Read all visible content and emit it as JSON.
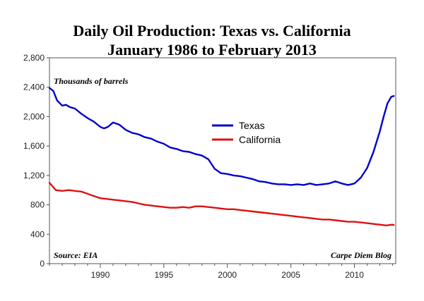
{
  "chart_data": {
    "type": "line",
    "title": "Daily Oil Production: Texas vs. California",
    "subtitle": "January 1986 to February 2013",
    "ylabel": "Thousands of barrels",
    "xlabel": "",
    "xlim": [
      1986,
      2013.25
    ],
    "ylim": [
      0,
      2800
    ],
    "x_ticks": [
      1990,
      1995,
      2000,
      2005,
      2010
    ],
    "y_ticks": [
      0,
      400,
      800,
      1200,
      1600,
      2000,
      2400,
      2800
    ],
    "grid": false,
    "legend_position": "center",
    "source": "Source: EIA",
    "credit": "Carpe Diem Blog",
    "series": [
      {
        "name": "Texas",
        "color": "#0000cc",
        "x": [
          1986.0,
          1986.3,
          1986.6,
          1987.0,
          1987.3,
          1987.6,
          1988.0,
          1988.5,
          1989.0,
          1989.5,
          1990.0,
          1990.3,
          1990.6,
          1991.0,
          1991.5,
          1992.0,
          1992.5,
          1993.0,
          1993.5,
          1994.0,
          1994.5,
          1995.0,
          1995.5,
          1996.0,
          1996.5,
          1997.0,
          1997.5,
          1998.0,
          1998.5,
          1999.0,
          1999.5,
          2000.0,
          2000.5,
          2001.0,
          2001.5,
          2002.0,
          2002.5,
          2003.0,
          2003.5,
          2004.0,
          2004.5,
          2005.0,
          2005.5,
          2006.0,
          2006.5,
          2007.0,
          2007.5,
          2008.0,
          2008.5,
          2009.0,
          2009.5,
          2010.0,
          2010.5,
          2011.0,
          2011.5,
          2012.0,
          2012.3,
          2012.6,
          2012.9,
          2013.1
        ],
        "values": [
          2390,
          2350,
          2220,
          2150,
          2160,
          2130,
          2110,
          2040,
          1980,
          1930,
          1860,
          1840,
          1860,
          1920,
          1890,
          1820,
          1780,
          1760,
          1720,
          1700,
          1660,
          1630,
          1580,
          1560,
          1530,
          1520,
          1490,
          1470,
          1420,
          1290,
          1230,
          1220,
          1200,
          1190,
          1170,
          1150,
          1120,
          1110,
          1090,
          1080,
          1080,
          1070,
          1080,
          1070,
          1090,
          1070,
          1080,
          1090,
          1120,
          1090,
          1070,
          1090,
          1170,
          1300,
          1520,
          1800,
          2000,
          2180,
          2270,
          2280
        ]
      },
      {
        "name": "California",
        "color": "#dd1111",
        "x": [
          1986.0,
          1986.2,
          1986.5,
          1987.0,
          1987.5,
          1988.0,
          1988.5,
          1989.0,
          1989.5,
          1990.0,
          1990.5,
          1991.0,
          1991.5,
          1992.0,
          1992.5,
          1993.0,
          1993.5,
          1994.0,
          1994.5,
          1995.0,
          1995.5,
          1996.0,
          1996.5,
          1997.0,
          1997.5,
          1998.0,
          1998.5,
          1999.0,
          1999.5,
          2000.0,
          2000.5,
          2001.0,
          2001.5,
          2002.0,
          2002.5,
          2003.0,
          2003.5,
          2004.0,
          2004.5,
          2005.0,
          2005.5,
          2006.0,
          2006.5,
          2007.0,
          2007.5,
          2008.0,
          2008.5,
          2009.0,
          2009.5,
          2010.0,
          2010.5,
          2011.0,
          2011.5,
          2012.0,
          2012.5,
          2013.0,
          2013.1
        ],
        "values": [
          1100,
          1060,
          1000,
          990,
          1000,
          990,
          980,
          950,
          920,
          890,
          880,
          870,
          860,
          850,
          840,
          820,
          800,
          790,
          780,
          770,
          760,
          760,
          770,
          760,
          780,
          780,
          770,
          760,
          750,
          740,
          740,
          730,
          720,
          710,
          700,
          690,
          680,
          670,
          660,
          650,
          640,
          630,
          620,
          610,
          600,
          600,
          590,
          580,
          570,
          570,
          560,
          550,
          540,
          530,
          520,
          530,
          525
        ]
      }
    ]
  }
}
